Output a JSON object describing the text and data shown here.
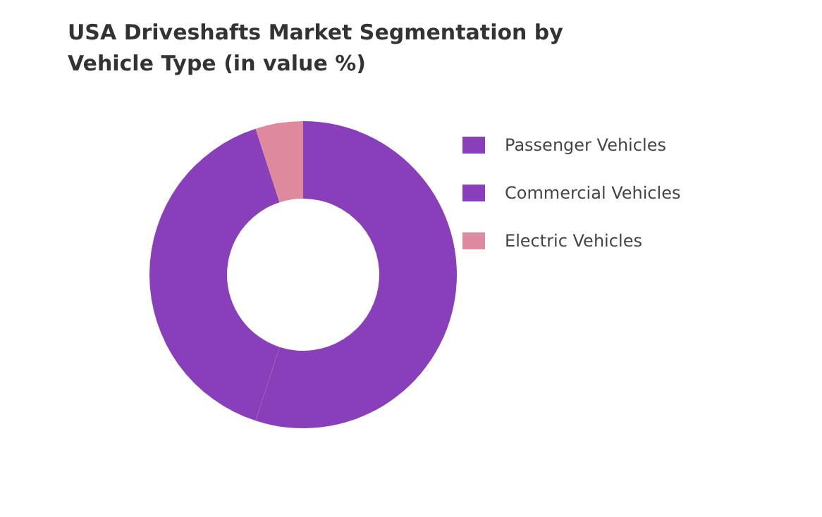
{
  "chart_data": {
    "type": "donut",
    "title": "USA Driveshafts Market Segmentation by Vehicle Type (in value %)",
    "categories": [
      "Passenger Vehicles",
      "Commercial Vehicles",
      "Electric Vehicles"
    ],
    "values": [
      55,
      40,
      5
    ],
    "colors": [
      "#8a3fba",
      "#8a3fba",
      "#de8a9c"
    ],
    "legend": "right"
  }
}
